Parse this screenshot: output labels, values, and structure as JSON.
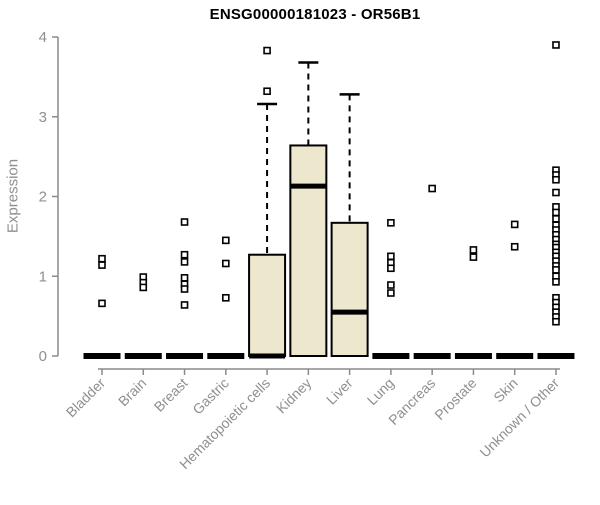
{
  "title": "ENSG00000181023 - OR56B1",
  "chart_data": {
    "type": "boxplot",
    "title": "ENSG00000181023 - OR56B1",
    "xlabel": "",
    "ylabel": "Expression",
    "ylim": [
      0,
      4
    ],
    "yticks": [
      "0",
      "1",
      "2",
      "3",
      "4"
    ],
    "grid": false,
    "legend": "none",
    "colors": {
      "box_fill": "#ECE7CD",
      "box_border": "#000000",
      "median": "#000000",
      "whisker": "#000000",
      "outlier_stroke": "#000000",
      "outlier_fill": "#FFFFFF",
      "axis_line": "#8A8A8A",
      "tick_label": "#8F8F8F",
      "title_color": "#000000",
      "background": "#FFFFFF"
    },
    "categories": [
      {
        "label": "Bladder",
        "box": {
          "q1": 0,
          "median": 0,
          "q3": 0,
          "whisker_low": 0,
          "whisker_high": 0
        },
        "outliers": [
          1.22,
          1.14,
          0.66
        ]
      },
      {
        "label": "Brain",
        "box": {
          "q1": 0,
          "median": 0,
          "q3": 0,
          "whisker_low": 0,
          "whisker_high": 0
        },
        "outliers": [
          0.99,
          0.92,
          0.86
        ]
      },
      {
        "label": "Breast",
        "box": {
          "q1": 0,
          "median": 0,
          "q3": 0,
          "whisker_low": 0,
          "whisker_high": 0
        },
        "outliers": [
          1.68,
          1.27,
          1.18,
          0.98,
          0.9,
          0.84,
          0.64
        ]
      },
      {
        "label": "Gastric",
        "box": {
          "q1": 0,
          "median": 0,
          "q3": 0,
          "whisker_low": 0,
          "whisker_high": 0
        },
        "outliers": [
          1.45,
          1.16,
          0.73
        ]
      },
      {
        "label": "Hematopoietic cells",
        "box": {
          "q1": 0,
          "median": 0,
          "q3": 1.27,
          "whisker_low": 0,
          "whisker_high": 3.16
        },
        "outliers": [
          3.83,
          3.32
        ]
      },
      {
        "label": "Kidney",
        "box": {
          "q1": 0,
          "median": 2.13,
          "q3": 2.64,
          "whisker_low": 0,
          "whisker_high": 3.68
        },
        "outliers": []
      },
      {
        "label": "Liver",
        "box": {
          "q1": 0,
          "median": 0.55,
          "q3": 1.67,
          "whisker_low": 0,
          "whisker_high": 3.28
        },
        "outliers": []
      },
      {
        "label": "Lung",
        "box": {
          "q1": 0,
          "median": 0,
          "q3": 0,
          "whisker_low": 0,
          "whisker_high": 0
        },
        "outliers": [
          1.67,
          1.25,
          1.17,
          1.1,
          0.89,
          0.79
        ]
      },
      {
        "label": "Pancreas",
        "box": {
          "q1": 0,
          "median": 0,
          "q3": 0,
          "whisker_low": 0,
          "whisker_high": 0
        },
        "outliers": [
          2.1
        ]
      },
      {
        "label": "Prostate",
        "box": {
          "q1": 0,
          "median": 0,
          "q3": 0,
          "whisker_low": 0,
          "whisker_high": 0
        },
        "outliers": [
          1.33,
          1.24
        ]
      },
      {
        "label": "Skin",
        "box": {
          "q1": 0,
          "median": 0,
          "q3": 0,
          "whisker_low": 0,
          "whisker_high": 0
        },
        "outliers": [
          1.65,
          1.37
        ]
      },
      {
        "label": "Unknown / Other",
        "box": {
          "q1": 0,
          "median": 0,
          "q3": 0,
          "whisker_low": 0,
          "whisker_high": 0
        },
        "outliers": [
          3.9,
          2.33,
          2.27,
          2.21,
          2.05,
          1.87,
          1.8,
          1.72,
          1.64,
          1.58,
          1.52,
          1.46,
          1.4,
          1.36,
          1.3,
          1.25,
          1.19,
          1.13,
          1.08,
          1.0,
          0.93,
          0.73,
          0.67,
          0.61,
          0.55,
          0.49,
          0.43
        ]
      }
    ]
  }
}
